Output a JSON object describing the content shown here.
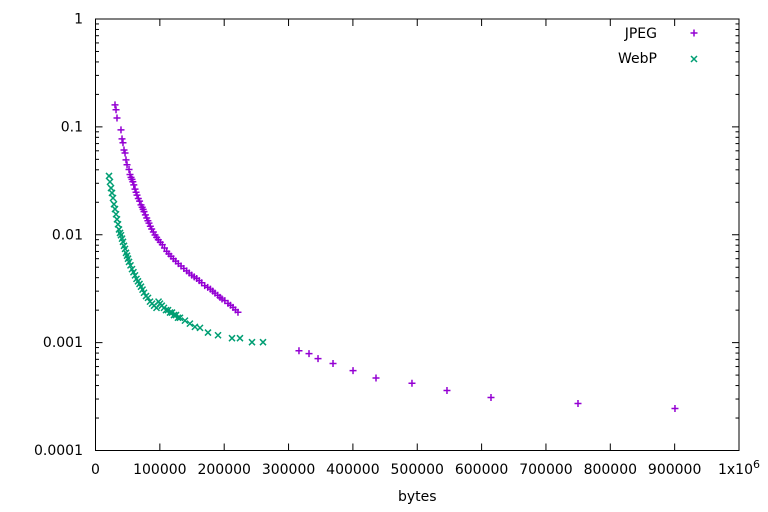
{
  "window": {
    "background": "#ffffff"
  },
  "chart_data": {
    "type": "scatter",
    "title": "",
    "xlabel": "bytes",
    "ylabel": "",
    "grid": false,
    "legend_position": "top-right-inside",
    "axes": {
      "x": {
        "scale": "linear",
        "min": 0,
        "max": 1000000,
        "tick_values": [
          0,
          100000,
          200000,
          300000,
          400000,
          500000,
          600000,
          700000,
          800000,
          900000,
          1000000
        ],
        "tick_labels": [
          "0",
          "100000",
          "200000",
          "300000",
          "400000",
          "500000",
          "600000",
          "700000",
          "800000",
          "900000",
          "1x10^6"
        ]
      },
      "y": {
        "scale": "log",
        "min": 0.0001,
        "max": 1,
        "tick_values": [
          1,
          0.1,
          0.01,
          0.001,
          0.0001
        ],
        "tick_labels": [
          "1",
          "0.1",
          "0.01",
          "0.001",
          "0.0001"
        ]
      }
    },
    "series": [
      {
        "name": "JPEG",
        "marker": "plus",
        "color": "#9400d3",
        "points": [
          [
            30300,
            0.16
          ],
          [
            31900,
            0.144
          ],
          [
            33400,
            0.121
          ],
          [
            39600,
            0.0937
          ],
          [
            41200,
            0.0774
          ],
          [
            42700,
            0.0712
          ],
          [
            44300,
            0.0611
          ],
          [
            45900,
            0.0573
          ],
          [
            47400,
            0.0494
          ],
          [
            49000,
            0.0446
          ],
          [
            52100,
            0.0403
          ],
          [
            53600,
            0.0362
          ],
          [
            55200,
            0.034
          ],
          [
            56700,
            0.0326
          ],
          [
            58000,
            0.031
          ],
          [
            59500,
            0.029
          ],
          [
            61400,
            0.0265
          ],
          [
            63000,
            0.0248
          ],
          [
            64500,
            0.0233
          ],
          [
            66500,
            0.0217
          ],
          [
            68500,
            0.0205
          ],
          [
            70700,
            0.0189
          ],
          [
            72500,
            0.018
          ],
          [
            74000,
            0.0172
          ],
          [
            75400,
            0.0164
          ],
          [
            77500,
            0.0153
          ],
          [
            79600,
            0.0143
          ],
          [
            81400,
            0.0135
          ],
          [
            83100,
            0.0128
          ],
          [
            85200,
            0.012
          ],
          [
            87300,
            0.0113
          ],
          [
            89900,
            0.0106
          ],
          [
            92500,
            0.00995
          ],
          [
            95000,
            0.00945
          ],
          [
            97600,
            0.00898
          ],
          [
            100700,
            0.00853
          ],
          [
            103800,
            0.0081
          ],
          [
            107200,
            0.00753
          ],
          [
            110700,
            0.00701
          ],
          [
            114000,
            0.00665
          ],
          [
            117300,
            0.00632
          ],
          [
            121000,
            0.00599
          ],
          [
            124600,
            0.00569
          ],
          [
            128700,
            0.0054
          ],
          [
            132900,
            0.00513
          ],
          [
            137300,
            0.00487
          ],
          [
            141700,
            0.00463
          ],
          [
            145600,
            0.00442
          ],
          [
            149500,
            0.00422
          ],
          [
            153400,
            0.00407
          ],
          [
            157300,
            0.00393
          ],
          [
            161200,
            0.00376
          ],
          [
            165000,
            0.00359
          ],
          [
            169700,
            0.00338
          ],
          [
            174400,
            0.00325
          ],
          [
            178600,
            0.00313
          ],
          [
            182200,
            0.003
          ],
          [
            185700,
            0.00288
          ],
          [
            190000,
            0.00275
          ],
          [
            193500,
            0.00263
          ],
          [
            196600,
            0.00254
          ],
          [
            201000,
            0.00245
          ],
          [
            205900,
            0.00231
          ],
          [
            209800,
            0.00222
          ],
          [
            213700,
            0.00212
          ],
          [
            217500,
            0.00201
          ],
          [
            221400,
            0.00191
          ],
          [
            316200,
            0.00084
          ],
          [
            331800,
            0.00079
          ],
          [
            345800,
            0.00071
          ],
          [
            369100,
            0.00064
          ],
          [
            400200,
            0.00055
          ],
          [
            435900,
            0.00047
          ],
          [
            491800,
            0.00042
          ],
          [
            546200,
            0.00036
          ],
          [
            614600,
            0.00031
          ],
          [
            749800,
            0.000273
          ],
          [
            900500,
            0.000245
          ]
        ]
      },
      {
        "name": "WebP",
        "marker": "times",
        "color": "#009e73",
        "points": [
          [
            21000,
            0.0351
          ],
          [
            22500,
            0.0309
          ],
          [
            24100,
            0.0271
          ],
          [
            25600,
            0.0244
          ],
          [
            27200,
            0.0219
          ],
          [
            28700,
            0.0192
          ],
          [
            30300,
            0.0173
          ],
          [
            31900,
            0.0155
          ],
          [
            33400,
            0.0139
          ],
          [
            35000,
            0.0125
          ],
          [
            36500,
            0.0112
          ],
          [
            38100,
            0.0104
          ],
          [
            39600,
            0.0099
          ],
          [
            41200,
            0.0092
          ],
          [
            42700,
            0.0086
          ],
          [
            44300,
            0.0079
          ],
          [
            45900,
            0.0074
          ],
          [
            47400,
            0.0068
          ],
          [
            49000,
            0.0064
          ],
          [
            50500,
            0.006
          ],
          [
            52100,
            0.0056
          ],
          [
            54400,
            0.0052
          ],
          [
            56700,
            0.0048
          ],
          [
            59000,
            0.0045
          ],
          [
            61400,
            0.0042
          ],
          [
            63700,
            0.0039
          ],
          [
            66000,
            0.0037
          ],
          [
            68400,
            0.0035
          ],
          [
            70700,
            0.0033
          ],
          [
            73100,
            0.0031
          ],
          [
            75400,
            0.0029
          ],
          [
            78500,
            0.0027
          ],
          [
            81600,
            0.0026
          ],
          [
            84700,
            0.0024
          ],
          [
            87900,
            0.0023
          ],
          [
            91000,
            0.0022
          ],
          [
            94800,
            0.0021
          ],
          [
            98000,
            0.0024
          ],
          [
            100200,
            0.0023
          ],
          [
            103000,
            0.0022
          ],
          [
            106400,
            0.0021
          ],
          [
            109500,
            0.002
          ],
          [
            112700,
            0.002
          ],
          [
            115800,
            0.0019
          ],
          [
            118900,
            0.0019
          ],
          [
            122000,
            0.0018
          ],
          [
            125100,
            0.0018
          ],
          [
            128200,
            0.0017
          ],
          [
            131300,
            0.0017
          ],
          [
            139000,
            0.0016
          ],
          [
            146700,
            0.0015
          ],
          [
            154500,
            0.0014
          ],
          [
            162400,
            0.00137
          ],
          [
            174800,
            0.00124
          ],
          [
            190400,
            0.00117
          ],
          [
            212100,
            0.0011
          ],
          [
            224500,
            0.0011
          ],
          [
            243200,
            0.00101
          ],
          [
            260300,
            0.00101
          ]
        ]
      }
    ]
  },
  "colors": {
    "jpeg_series": "#9400d3",
    "webp_series": "#009e73",
    "axis": "#000000",
    "text": "#000000",
    "background": "#ffffff"
  }
}
